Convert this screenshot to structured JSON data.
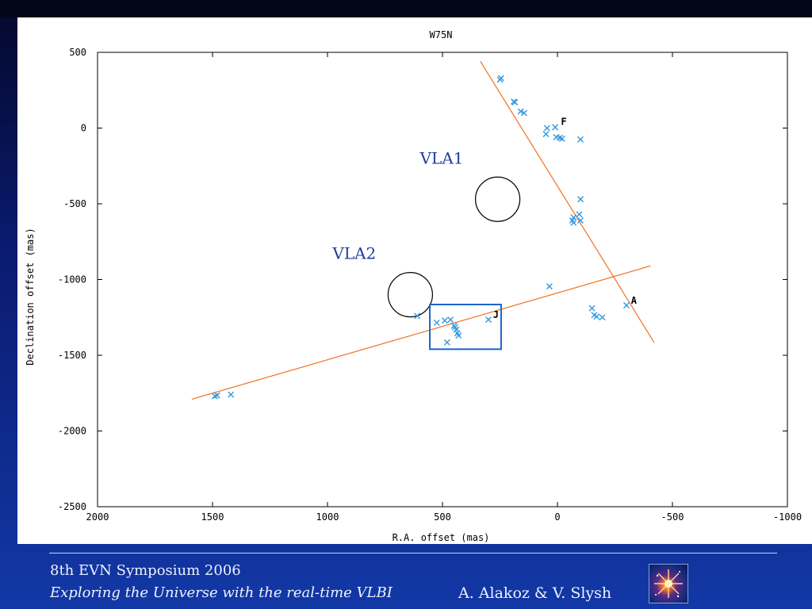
{
  "chart_data": {
    "type": "scatter",
    "title": "W75N",
    "xlabel": "R.A. offset (mas)",
    "ylabel": "Declination offset (mas)",
    "xlim": [
      2000,
      -1000
    ],
    "ylim": [
      -2500,
      500
    ],
    "xticks": [
      2000,
      1500,
      1000,
      500,
      0,
      -500,
      -1000
    ],
    "yticks": [
      500,
      0,
      -500,
      -1000,
      -1500,
      -2000,
      -2500
    ],
    "points": [
      {
        "x": 250,
        "y": 320
      },
      {
        "x": 245,
        "y": 330
      },
      {
        "x": 190,
        "y": 175
      },
      {
        "x": 185,
        "y": 170
      },
      {
        "x": 160,
        "y": 110
      },
      {
        "x": 145,
        "y": 100
      },
      {
        "x": 45,
        "y": 0
      },
      {
        "x": 10,
        "y": 5
      },
      {
        "x": 50,
        "y": -40
      },
      {
        "x": 5,
        "y": -60
      },
      {
        "x": -10,
        "y": -65
      },
      {
        "x": -20,
        "y": -70
      },
      {
        "x": -100,
        "y": -75
      },
      {
        "x": -100,
        "y": -470
      },
      {
        "x": -95,
        "y": -570
      },
      {
        "x": -70,
        "y": -590
      },
      {
        "x": -65,
        "y": -610
      },
      {
        "x": -70,
        "y": -625
      },
      {
        "x": -100,
        "y": -610
      },
      {
        "x": 35,
        "y": -1045
      },
      {
        "x": -150,
        "y": -1190
      },
      {
        "x": -160,
        "y": -1235
      },
      {
        "x": -170,
        "y": -1245
      },
      {
        "x": -195,
        "y": -1250
      },
      {
        "x": -300,
        "y": -1170
      },
      {
        "x": 610,
        "y": -1240
      },
      {
        "x": 525,
        "y": -1285
      },
      {
        "x": 490,
        "y": -1270
      },
      {
        "x": 465,
        "y": -1265
      },
      {
        "x": 450,
        "y": -1305
      },
      {
        "x": 445,
        "y": -1315
      },
      {
        "x": 440,
        "y": -1330
      },
      {
        "x": 435,
        "y": -1355
      },
      {
        "x": 430,
        "y": -1370
      },
      {
        "x": 480,
        "y": -1415
      },
      {
        "x": 300,
        "y": -1265
      },
      {
        "x": 1490,
        "y": -1770
      },
      {
        "x": 1480,
        "y": -1765
      },
      {
        "x": 1420,
        "y": -1760
      }
    ],
    "point_labels": [
      {
        "text": "F",
        "x": -15,
        "y": 20
      },
      {
        "text": "A",
        "x": -320,
        "y": -1160
      },
      {
        "text": "J",
        "x": 280,
        "y": -1255
      }
    ],
    "lines": [
      {
        "color": "#f07020",
        "from": [
          335,
          440
        ],
        "to": [
          -420,
          -1415
        ]
      },
      {
        "color": "#f07020",
        "from": [
          1590,
          -1790
        ],
        "to": [
          -405,
          -910
        ]
      }
    ],
    "circles": [
      {
        "label": "VLA1",
        "x": 260,
        "y": -470
      },
      {
        "label": "VLA2",
        "x": 640,
        "y": -1100
      }
    ],
    "box": {
      "x1": 555,
      "x2": 245,
      "y1": -1165,
      "y2": -1460,
      "color": "#1a66c8"
    },
    "marker_color": "#3399e0",
    "grid": false
  },
  "footer": {
    "line1": "8th EVN Symposium 2006",
    "line2": "Exploring the Universe with the real-time VLBI",
    "authors": "A. Alakoz & V. Slysh"
  },
  "colors": {
    "background": "#0a1a6e",
    "accent_line": "#f07020",
    "annotation_text": "#1f3e9e"
  }
}
